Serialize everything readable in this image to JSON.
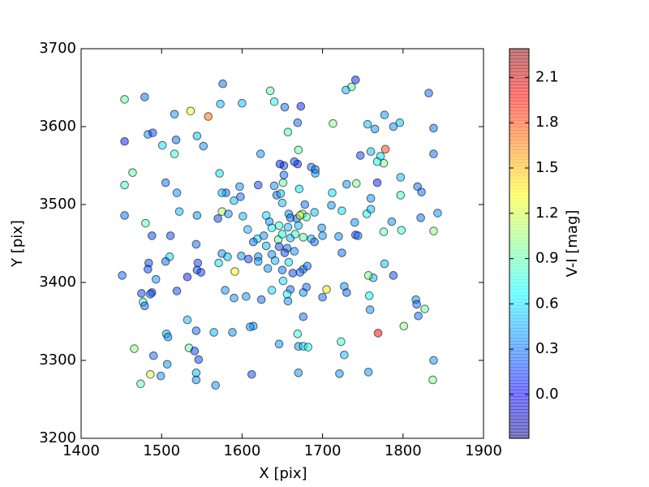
{
  "chart_data": {
    "type": "scatter",
    "xlabel": "X [pix]",
    "ylabel": "Y [pix]",
    "xlim": [
      1400,
      1900
    ],
    "xticks": [
      1400,
      1500,
      1600,
      1700,
      1800,
      1900
    ],
    "ylim": [
      3200,
      3700
    ],
    "yticks": [
      3200,
      3300,
      3400,
      3500,
      3600,
      3700
    ],
    "colorbar": {
      "label": "V-I [mag]",
      "colormap": "jet",
      "lim": [
        -0.29,
        2.29
      ],
      "ticks": [
        {
          "value": 0,
          "label": "0.0"
        },
        0.3,
        0.6,
        0.9,
        1.2,
        1.5,
        1.8,
        2.1
      ]
    },
    "x": [
      1741,
      1736,
      1729,
      1576,
      1635,
      1832,
      1454,
      1479,
      1573,
      1600,
      1640,
      1653,
      1673,
      1536,
      1516,
      1558,
      1777,
      1669,
      1713,
      1756,
      1765,
      1796,
      1788,
      1838,
      1483,
      1489,
      1544,
      1657,
      1454,
      1518,
      1501,
      1552,
      1516,
      1623,
      1670,
      1747,
      1760,
      1778,
      1772,
      1838,
      1776,
      1768,
      1652,
      1669,
      1686,
      1665,
      1647,
      1464,
      1572,
      1652,
      1691,
      1691,
      1505,
      1454,
      1742,
      1768,
      1797,
      1818,
      1651,
      1620,
      1597,
      1640,
      1671,
      1580,
      1519,
      1575,
      1598,
      1643,
      1648,
      1712,
      1730,
      1760,
      1797,
      1823,
      1590,
      1650,
      1678,
      1711,
      1454,
      1522,
      1544,
      1575,
      1583,
      1601,
      1630,
      1658,
      1660,
      1668,
      1675,
      1680,
      1672,
      1690,
      1724,
      1755,
      1740,
      1760,
      1786,
      1822,
      1843,
      1480,
      1570,
      1634,
      1637,
      1646,
      1657,
      1670,
      1699,
      1607,
      1776,
      1798,
      1838,
      1488,
      1511,
      1619,
      1627,
      1645,
      1650,
      1660,
      1666,
      1676,
      1686,
      1700,
      1720,
      1741,
      1744,
      1543,
      1614,
      1630,
      1646,
      1656,
      1690,
      1575,
      1582,
      1599,
      1608,
      1620,
      1637,
      1653,
      1665,
      1724,
      1510,
      1505,
      1484,
      1571,
      1545,
      1641,
      1658,
      1777,
      1620,
      1483,
      1544,
      1549,
      1591,
      1632,
      1650,
      1663,
      1676,
      1681,
      1672,
      1451,
      1532,
      1493,
      1651,
      1763,
      1788,
      1757,
      1727,
      1519,
      1579,
      1637,
      1660,
      1680,
      1705,
      1475,
      1488,
      1486,
      1590,
      1605,
      1624,
      1656,
      1657,
      1676,
      1700,
      1730,
      1758,
      1816,
      1817,
      1477,
      1479,
      1759,
      1827,
      1819,
      1676,
      1532,
      1614,
      1610,
      1801,
      1506,
      1508,
      1543,
      1565,
      1588,
      1669,
      1769,
      1723,
      1646,
      1670,
      1676,
      1682,
      1466,
      1534,
      1541,
      1546,
      1490,
      1727,
      1838,
      1507,
      1486,
      1499,
      1543,
      1670,
      1612,
      1721,
      1757,
      1543,
      1474,
      1567,
      1837
    ],
    "values": [
      3660,
      3651,
      3647,
      3655,
      3646,
      3643,
      3635,
      3638,
      3629,
      3630,
      3632,
      3625,
      3626,
      3620,
      3616,
      3613,
      3615,
      3605,
      3604,
      3603,
      3597,
      3605,
      3600,
      3598,
      3590,
      3592,
      3588,
      3593,
      3581,
      3583,
      3576,
      3575,
      3565,
      3565,
      3570,
      3563,
      3568,
      3571,
      3562,
      3565,
      3553,
      3555,
      3550,
      3552,
      3548,
      3555,
      3552,
      3541,
      3540,
      3538,
      3540,
      3545,
      3528,
      3525,
      3527,
      3528,
      3535,
      3523,
      3528,
      3525,
      3523,
      3524,
      3520,
      3515,
      3515,
      3515,
      3510,
      3512,
      3514,
      3515,
      3526,
      3508,
      3512,
      3516,
      3505,
      3502,
      3500,
      3499,
      3486,
      3491,
      3486,
      3491,
      3488,
      3485,
      3486,
      3488,
      3483,
      3482,
      3488,
      3484,
      3486,
      3490,
      3492,
      3488,
      3477,
      3494,
      3478,
      3483,
      3489,
      3476,
      3482,
      3478,
      3470,
      3473,
      3471,
      3473,
      3470,
      3468,
      3465,
      3467,
      3466,
      3460,
      3460,
      3456,
      3460,
      3455,
      3462,
      3457,
      3462,
      3458,
      3456,
      3460,
      3459,
      3461,
      3460,
      3449,
      3452,
      3447,
      3446,
      3444,
      3452,
      3437,
      3433,
      3434,
      3430,
      3433,
      3436,
      3438,
      3440,
      3438,
      3433,
      3427,
      3425,
      3425,
      3425,
      3428,
      3426,
      3424,
      3427,
      3417,
      3416,
      3413,
      3414,
      3418,
      3416,
      3412,
      3417,
      3421,
      3413,
      3409,
      3407,
      3404,
      3402,
      3406,
      3409,
      3409,
      3395,
      3389,
      3390,
      3390,
      3391,
      3394,
      3391,
      3386,
      3387,
      3385,
      3380,
      3382,
      3378,
      3385,
      3376,
      3387,
      3381,
      3387,
      3383,
      3378,
      3372,
      3375,
      3370,
      3365,
      3366,
      3357,
      3356,
      3352,
      3344,
      3343,
      3344,
      3334,
      3330,
      3338,
      3336,
      3336,
      3334,
      3335,
      3324,
      3321,
      3318,
      3318,
      3317,
      3315,
      3316,
      3312,
      3301,
      3306,
      3307,
      3300,
      3295,
      3282,
      3280,
      3284,
      3284,
      3282,
      3283,
      3285,
      3275,
      3270,
      3268,
      3275
    ],
    "color_values": [
      0.1,
      0.9,
      0.5,
      0.3,
      0.9,
      0.3,
      0.9,
      0.3,
      0.5,
      0.5,
      0.7,
      0.3,
      0.1,
      1.3,
      0.4,
      1.7,
      0.4,
      0.3,
      1.0,
      0.5,
      0.4,
      0.5,
      0.4,
      0.3,
      0.4,
      0.2,
      0.5,
      0.8,
      0.1,
      0.3,
      0.6,
      0.4,
      0.8,
      0.4,
      0.9,
      0.2,
      0.5,
      1.8,
      0.6,
      0.3,
      1.0,
      0.7,
      0.2,
      0.1,
      0.3,
      0.2,
      0.1,
      0.9,
      0.6,
      0.3,
      0.4,
      0.3,
      0.3,
      0.8,
      1.0,
      0.1,
      0.5,
      0.3,
      0.9,
      0.2,
      0.4,
      0.4,
      0.6,
      0.3,
      0.4,
      0.5,
      0.3,
      0.3,
      0.5,
      0.6,
      0.4,
      0.4,
      0.8,
      0.3,
      0.5,
      0.5,
      0.3,
      0.4,
      0.3,
      0.5,
      0.4,
      1.1,
      0.4,
      0.5,
      0.6,
      0.4,
      0.3,
      0.3,
      1.0,
      0.8,
      1.2,
      0.5,
      0.6,
      0.7,
      0.4,
      0.5,
      0.4,
      0.3,
      0.4,
      0.9,
      0.2,
      0.4,
      0.7,
      0.8,
      0.5,
      0.5,
      0.4,
      0.5,
      0.9,
      0.8,
      1.0,
      0.2,
      0.2,
      0.6,
      0.4,
      0.9,
      0.7,
      0.5,
      0.8,
      0.9,
      0.5,
      0.4,
      0.4,
      0.2,
      0.3,
      0.3,
      0.3,
      0.5,
      0.2,
      0.3,
      0.3,
      0.4,
      0.5,
      0.4,
      0.2,
      0.4,
      0.4,
      0.2,
      0.4,
      0.3,
      0.6,
      0.3,
      0.2,
      0.6,
      0.2,
      0.5,
      0.6,
      0.5,
      0.4,
      0.2,
      0.2,
      0.2,
      1.3,
      0.4,
      0.3,
      0.2,
      0.3,
      0.3,
      0.3,
      0.3,
      0.1,
      0.4,
      0.6,
      0.5,
      0.2,
      1.0,
      0.4,
      0.2,
      0.4,
      0.6,
      0.3,
      0.3,
      1.4,
      0.2,
      0.1,
      0.3,
      0.4,
      0.4,
      0.3,
      0.7,
      0.4,
      0.4,
      0.3,
      0.3,
      0.7,
      0.4,
      0.3,
      0.8,
      0.3,
      0.4,
      0.9,
      0.3,
      0.3,
      0.5,
      0.4,
      0.4,
      1.0,
      0.5,
      0.4,
      0.3,
      0.5,
      0.4,
      0.8,
      2.0,
      0.8,
      0.4,
      0.4,
      0.6,
      0.7,
      1.0,
      0.9,
      0.2,
      0.2,
      0.3,
      0.5,
      0.4,
      0.4,
      1.2,
      0.4,
      0.5,
      0.4,
      0.2,
      0.4,
      0.4,
      0.4,
      0.9,
      0.4,
      1.0
    ]
  }
}
